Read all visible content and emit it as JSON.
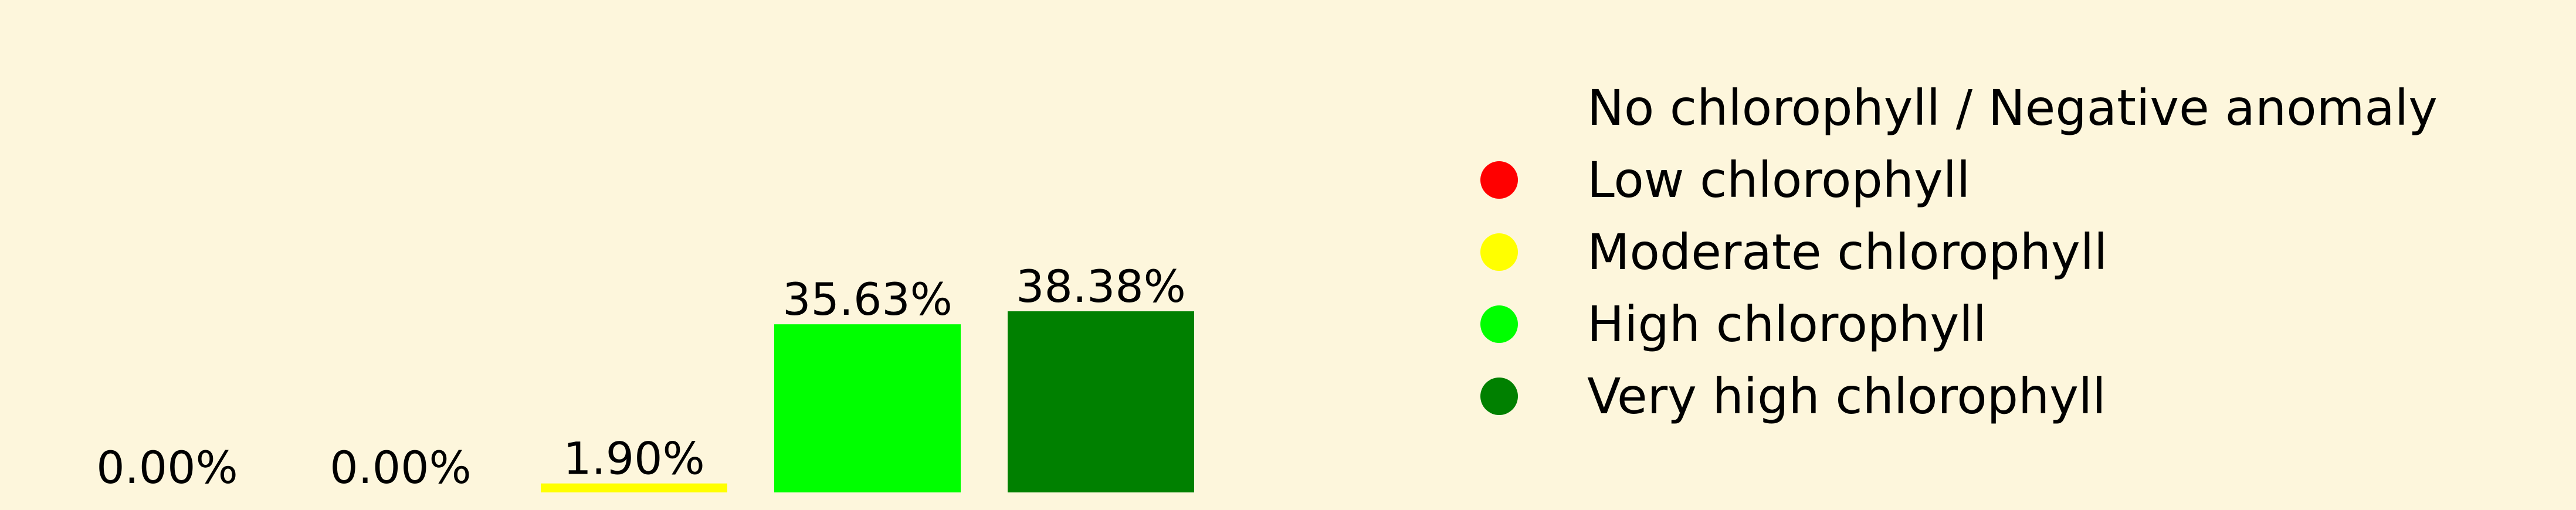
{
  "chart_data": {
    "type": "bar",
    "categories": [
      "No chlorophyll / Negative anomaly",
      "Low chlorophyll",
      "Moderate chlorophyll",
      "High chlorophyll",
      "Very high chlorophyll"
    ],
    "values": [
      0.0,
      0.0,
      1.9,
      35.63,
      38.38
    ],
    "data_labels": [
      "0.00%",
      "0.00%",
      "1.90%",
      "35.63%",
      "38.38%"
    ],
    "colors": [
      "#FFFFFF",
      "#FF0000",
      "#FFFF00",
      "#00FF00",
      "#008000"
    ],
    "axes_visible": false,
    "grid": false,
    "legend": {
      "placement": "right",
      "entries": [
        {
          "label": "No chlorophyll / Negative anomaly",
          "color": "#FDF6DC"
        },
        {
          "label": "Low chlorophyll",
          "color": "#FF0000"
        },
        {
          "label": "Moderate chlorophyll",
          "color": "#FFFF00"
        },
        {
          "label": "High chlorophyll",
          "color": "#00FF00"
        },
        {
          "label": "Very high chlorophyll",
          "color": "#008000"
        }
      ]
    }
  }
}
